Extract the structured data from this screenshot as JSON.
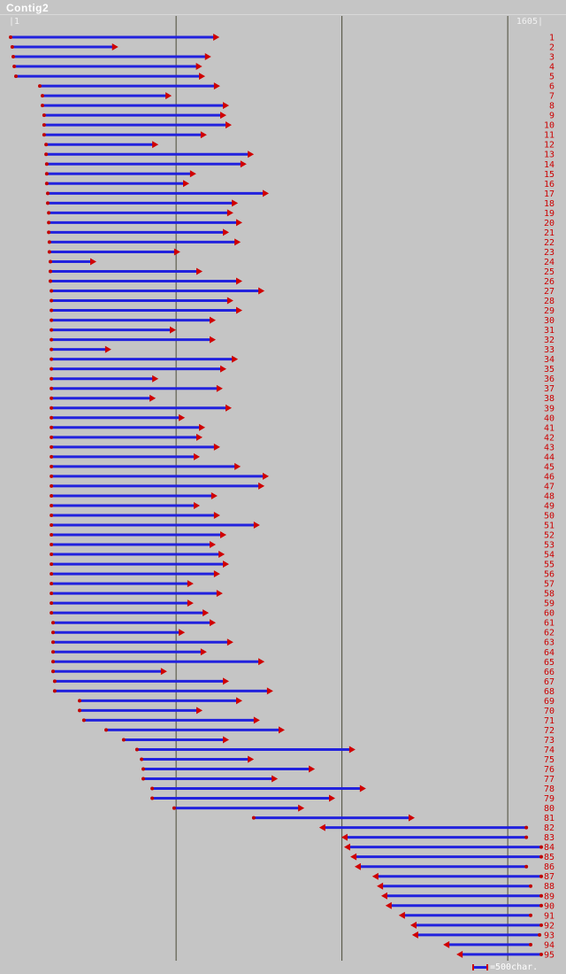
{
  "window": {
    "title": "Contig2"
  },
  "scale": {
    "left_label": "|1",
    "right_label": "1605|"
  },
  "legend": {
    "label": "=500char."
  },
  "colors": {
    "background": "#c5c5c5",
    "read_line": "#2222dd",
    "read_arrow": "#d00000",
    "read_tail": "#c00000",
    "number": "#cc0000",
    "gridline": "#4a4a38",
    "title_text": "#ffffff",
    "scale_text": "#f2f2f2"
  },
  "chart_data": {
    "type": "interval",
    "mark": "horizontal-arrow",
    "title": "Contig2",
    "x_unit": "char",
    "x_domain": [
      1,
      1605
    ],
    "gridlines_char": [
      500,
      1000,
      1500
    ],
    "legend_scale_chars": 500,
    "read_fields": [
      "number",
      "start_char",
      "end_char",
      "direction"
    ],
    "reads": [
      [
        1,
        1,
        620,
        "+"
      ],
      [
        2,
        6,
        315,
        "+"
      ],
      [
        3,
        9,
        595,
        "+"
      ],
      [
        4,
        12,
        568,
        "+"
      ],
      [
        5,
        17,
        577,
        "+"
      ],
      [
        6,
        89,
        622,
        "+"
      ],
      [
        7,
        97,
        476,
        "+"
      ],
      [
        8,
        97,
        649,
        "+"
      ],
      [
        9,
        102,
        641,
        "+"
      ],
      [
        10,
        102,
        657,
        "+"
      ],
      [
        11,
        102,
        582,
        "+"
      ],
      [
        12,
        108,
        436,
        "+"
      ],
      [
        13,
        108,
        724,
        "+"
      ],
      [
        14,
        110,
        702,
        "+"
      ],
      [
        15,
        110,
        550,
        "+"
      ],
      [
        16,
        110,
        529,
        "+"
      ],
      [
        17,
        113,
        769,
        "+"
      ],
      [
        18,
        113,
        676,
        "+"
      ],
      [
        19,
        116,
        662,
        "+"
      ],
      [
        20,
        116,
        689,
        "+"
      ],
      [
        21,
        116,
        649,
        "+"
      ],
      [
        22,
        118,
        684,
        "+"
      ],
      [
        23,
        118,
        502,
        "+"
      ],
      [
        24,
        121,
        249,
        "+"
      ],
      [
        25,
        121,
        569,
        "+"
      ],
      [
        26,
        121,
        689,
        "+"
      ],
      [
        27,
        124,
        756,
        "+"
      ],
      [
        28,
        124,
        662,
        "+"
      ],
      [
        29,
        124,
        689,
        "+"
      ],
      [
        30,
        124,
        609,
        "+"
      ],
      [
        31,
        124,
        489,
        "+"
      ],
      [
        32,
        124,
        609,
        "+"
      ],
      [
        33,
        124,
        294,
        "+"
      ],
      [
        34,
        124,
        676,
        "+"
      ],
      [
        35,
        124,
        641,
        "+"
      ],
      [
        36,
        124,
        436,
        "+"
      ],
      [
        37,
        124,
        630,
        "+"
      ],
      [
        38,
        124,
        428,
        "+"
      ],
      [
        39,
        124,
        657,
        "+"
      ],
      [
        40,
        124,
        516,
        "+"
      ],
      [
        41,
        124,
        577,
        "+"
      ],
      [
        42,
        124,
        569,
        "+"
      ],
      [
        43,
        124,
        622,
        "+"
      ],
      [
        44,
        124,
        561,
        "+"
      ],
      [
        45,
        124,
        684,
        "+"
      ],
      [
        46,
        124,
        769,
        "+"
      ],
      [
        47,
        124,
        756,
        "+"
      ],
      [
        48,
        124,
        614,
        "+"
      ],
      [
        49,
        124,
        561,
        "+"
      ],
      [
        50,
        124,
        622,
        "+"
      ],
      [
        51,
        124,
        742,
        "+"
      ],
      [
        52,
        124,
        641,
        "+"
      ],
      [
        53,
        124,
        609,
        "+"
      ],
      [
        54,
        124,
        636,
        "+"
      ],
      [
        55,
        124,
        649,
        "+"
      ],
      [
        56,
        124,
        622,
        "+"
      ],
      [
        57,
        124,
        542,
        "+"
      ],
      [
        58,
        124,
        630,
        "+"
      ],
      [
        59,
        124,
        542,
        "+"
      ],
      [
        60,
        124,
        588,
        "+"
      ],
      [
        61,
        129,
        609,
        "+"
      ],
      [
        62,
        129,
        516,
        "+"
      ],
      [
        63,
        129,
        662,
        "+"
      ],
      [
        64,
        129,
        582,
        "+"
      ],
      [
        65,
        129,
        756,
        "+"
      ],
      [
        66,
        129,
        462,
        "+"
      ],
      [
        67,
        134,
        649,
        "+"
      ],
      [
        68,
        134,
        782,
        "+"
      ],
      [
        69,
        209,
        689,
        "+"
      ],
      [
        70,
        209,
        569,
        "+"
      ],
      [
        71,
        222,
        742,
        "+"
      ],
      [
        72,
        289,
        817,
        "+"
      ],
      [
        73,
        342,
        649,
        "+"
      ],
      [
        74,
        382,
        1030,
        "+"
      ],
      [
        75,
        396,
        724,
        "+"
      ],
      [
        76,
        401,
        908,
        "+"
      ],
      [
        77,
        401,
        796,
        "+"
      ],
      [
        78,
        428,
        1062,
        "+"
      ],
      [
        79,
        428,
        969,
        "+"
      ],
      [
        80,
        494,
        876,
        "+"
      ],
      [
        81,
        734,
        1209,
        "+"
      ],
      [
        82,
        942,
        1556,
        "-"
      ],
      [
        83,
        1009,
        1556,
        "-"
      ],
      [
        84,
        1017,
        1601,
        "-"
      ],
      [
        85,
        1036,
        1601,
        "-"
      ],
      [
        86,
        1049,
        1556,
        "-"
      ],
      [
        87,
        1102,
        1601,
        "-"
      ],
      [
        88,
        1116,
        1569,
        "-"
      ],
      [
        89,
        1129,
        1601,
        "-"
      ],
      [
        90,
        1142,
        1601,
        "-"
      ],
      [
        91,
        1182,
        1569,
        "-"
      ],
      [
        92,
        1217,
        1601,
        "-"
      ],
      [
        93,
        1222,
        1596,
        "-"
      ],
      [
        94,
        1316,
        1569,
        "-"
      ],
      [
        95,
        1356,
        1601,
        "-"
      ]
    ]
  }
}
